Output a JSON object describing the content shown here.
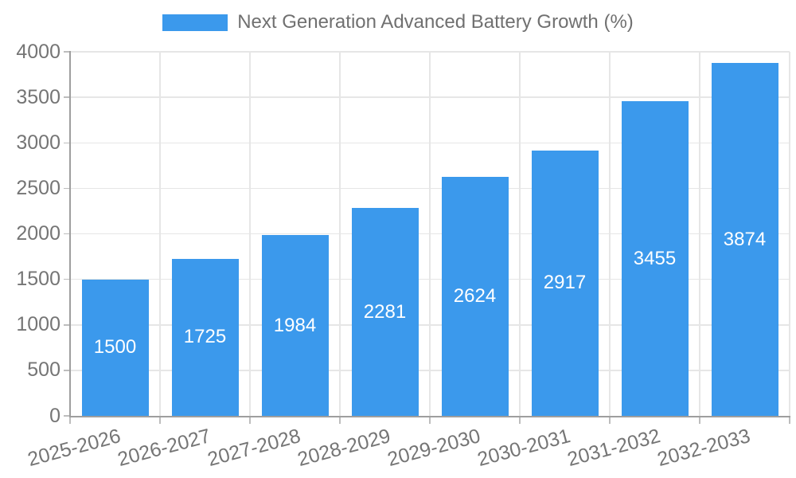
{
  "chart_data": {
    "type": "bar",
    "title": "Next Generation Advanced Battery Growth (%)",
    "categories": [
      "2025-2026",
      "2026-2027",
      "2027-2028",
      "2028-2029",
      "2029-2030",
      "2030-2031",
      "2031-2032",
      "2032-2033"
    ],
    "values": [
      1500,
      1725,
      1984,
      2281,
      2624,
      2917,
      3455,
      3874
    ],
    "series": [
      {
        "name": "Next Generation Advanced Battery Growth (%)",
        "values": [
          1500,
          1725,
          1984,
          2281,
          2624,
          2917,
          3455,
          3874
        ]
      }
    ],
    "xlabel": "",
    "ylabel": "",
    "ylim": [
      0,
      4000
    ],
    "yticks": [
      0,
      500,
      1000,
      1500,
      2000,
      2500,
      3000,
      3500,
      4000
    ],
    "grid": true,
    "legend_position": "top-center",
    "legend_label": "Next Generation Advanced Battery Growth (%)",
    "value_labels_shown": true,
    "colors": {
      "bar": "#3b99ec",
      "bar_value_text": "#ffffff",
      "grid": "#e6e6e6",
      "axis": "#9e9e9e",
      "tick": "#bdbdbd",
      "tick_label_text": "#757575",
      "legend_text": "#707070",
      "background": "#ffffff"
    }
  }
}
